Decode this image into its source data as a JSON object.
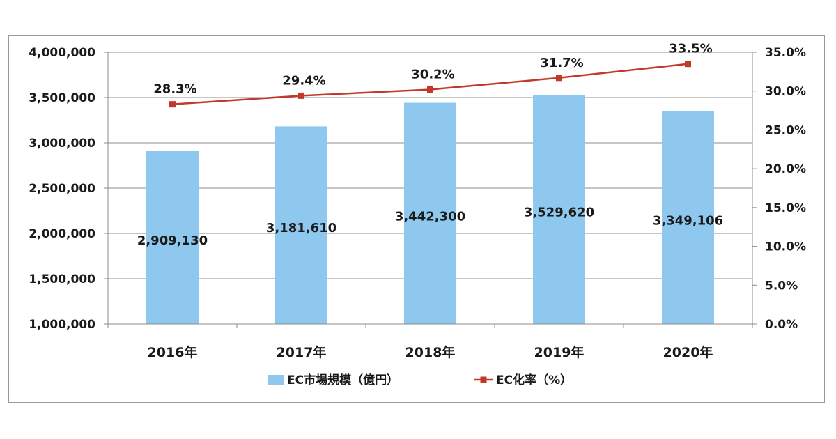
{
  "chart_data": {
    "type": "bar",
    "categories": [
      "2016年",
      "2017年",
      "2018年",
      "2019年",
      "2020年"
    ],
    "series": [
      {
        "name": "EC市場規模（億円）",
        "type": "bar",
        "axis": "left",
        "values": [
          2909130,
          3181610,
          3442300,
          3529620,
          3349106
        ],
        "labels": [
          "2,909,130",
          "3,181,610",
          "3,442,300",
          "3,529,620",
          "3,349,106"
        ],
        "color": "#8ec8ee"
      },
      {
        "name": "EC化率（%）",
        "type": "line",
        "axis": "right",
        "values": [
          28.3,
          29.4,
          30.2,
          31.7,
          33.5
        ],
        "labels": [
          "28.3%",
          "29.4%",
          "30.2%",
          "31.7%",
          "33.5%"
        ],
        "color": "#c0392b"
      }
    ],
    "y_left": {
      "lim": [
        1000000,
        4000000
      ],
      "ticks": [
        1000000,
        1500000,
        2000000,
        2500000,
        3000000,
        3500000,
        4000000
      ],
      "tick_labels": [
        "1,000,000",
        "1,500,000",
        "2,000,000",
        "2,500,000",
        "3,000,000",
        "3,500,000",
        "4,000,000"
      ]
    },
    "y_right": {
      "lim": [
        0,
        35
      ],
      "ticks": [
        0,
        5,
        10,
        15,
        20,
        25,
        30,
        35
      ],
      "tick_labels": [
        "0.0%",
        "5.0%",
        "10.0%",
        "15.0%",
        "20.0%",
        "25.0%",
        "30.0%",
        "35.0%"
      ]
    },
    "grid": true,
    "legend_position": "bottom-center",
    "title": "",
    "xlabel": "",
    "ylabel": ""
  }
}
